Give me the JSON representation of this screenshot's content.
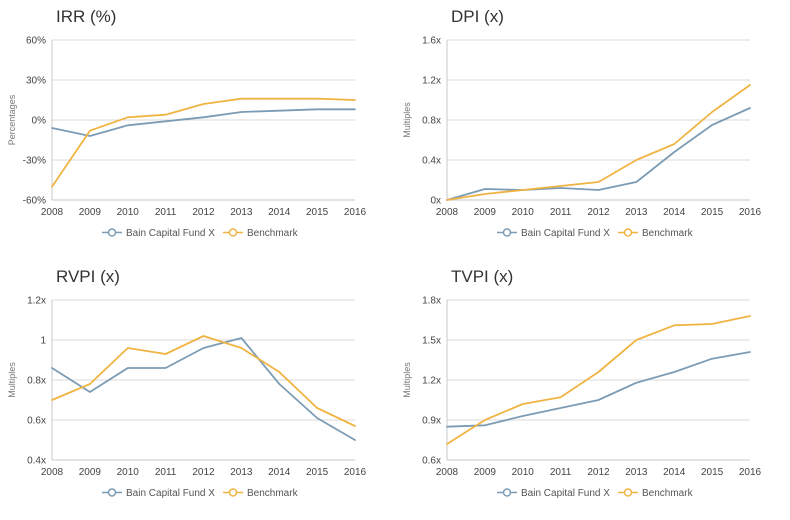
{
  "colors": {
    "fund": "#7c9cb5",
    "benchmark": "#f0b443",
    "grid": "#d9d9d9",
    "axis": "#c8c8c8"
  },
  "legend": {
    "fund": "Bain Capital Fund X",
    "benchmark": "Benchmark"
  },
  "chart_data": [
    {
      "type": "line",
      "title": "IRR (%)",
      "ylabel": "Percentages",
      "xlabel": "",
      "x": [
        "2008",
        "2009",
        "2010",
        "2011",
        "2012",
        "2013",
        "2014",
        "2015",
        "2016"
      ],
      "yticks": [
        "-60%",
        "-30%",
        "0%",
        "30%",
        "60%"
      ],
      "ylim": [
        -60,
        60
      ],
      "grid": true,
      "legend_position": "bottom",
      "series": [
        {
          "name": "Bain Capital Fund X",
          "values": [
            -6,
            -12,
            -4,
            -1,
            2,
            6,
            7,
            8,
            8
          ]
        },
        {
          "name": "Benchmark",
          "values": [
            -50,
            -8,
            2,
            4,
            12,
            16,
            16,
            16,
            15
          ]
        }
      ]
    },
    {
      "type": "line",
      "title": "DPI (x)",
      "ylabel": "Multiples",
      "xlabel": "",
      "x": [
        "2008",
        "2009",
        "2010",
        "2011",
        "2012",
        "2013",
        "2014",
        "2015",
        "2016"
      ],
      "yticks": [
        "0x",
        "0.4x",
        "0.8x",
        "1.2x",
        "1.6x"
      ],
      "ylim": [
        0,
        1.6
      ],
      "grid": true,
      "legend_position": "bottom",
      "series": [
        {
          "name": "Bain Capital Fund X",
          "values": [
            0.0,
            0.11,
            0.1,
            0.12,
            0.1,
            0.18,
            0.48,
            0.75,
            0.92
          ]
        },
        {
          "name": "Benchmark",
          "values": [
            0.0,
            0.06,
            0.1,
            0.14,
            0.18,
            0.4,
            0.56,
            0.88,
            1.15
          ]
        }
      ]
    },
    {
      "type": "line",
      "title": "RVPI (x)",
      "ylabel": "Multiples",
      "xlabel": "",
      "x": [
        "2008",
        "2009",
        "2010",
        "2011",
        "2012",
        "2013",
        "2014",
        "2015",
        "2016"
      ],
      "yticks": [
        "0.4x",
        "0.6x",
        "0.8x",
        "1",
        "1.2x"
      ],
      "ylim": [
        0.4,
        1.2
      ],
      "grid": true,
      "legend_position": "bottom",
      "series": [
        {
          "name": "Bain Capital Fund X",
          "values": [
            0.86,
            0.74,
            0.86,
            0.86,
            0.96,
            1.01,
            0.78,
            0.61,
            0.5
          ]
        },
        {
          "name": "Benchmark",
          "values": [
            0.7,
            0.78,
            0.96,
            0.93,
            1.02,
            0.96,
            0.84,
            0.66,
            0.57
          ]
        }
      ]
    },
    {
      "type": "line",
      "title": "TVPI (x)",
      "ylabel": "Multiples",
      "xlabel": "",
      "x": [
        "2008",
        "2009",
        "2010",
        "2011",
        "2012",
        "2013",
        "2014",
        "2015",
        "2016"
      ],
      "yticks": [
        "0.6x",
        "0.9x",
        "1.2x",
        "1.5x",
        "1.8x"
      ],
      "ylim": [
        0.6,
        1.8
      ],
      "grid": true,
      "legend_position": "bottom",
      "series": [
        {
          "name": "Bain Capital Fund X",
          "values": [
            0.85,
            0.86,
            0.93,
            0.99,
            1.05,
            1.18,
            1.26,
            1.36,
            1.41
          ]
        },
        {
          "name": "Benchmark",
          "values": [
            0.72,
            0.9,
            1.02,
            1.07,
            1.26,
            1.5,
            1.61,
            1.62,
            1.68
          ]
        }
      ]
    }
  ]
}
